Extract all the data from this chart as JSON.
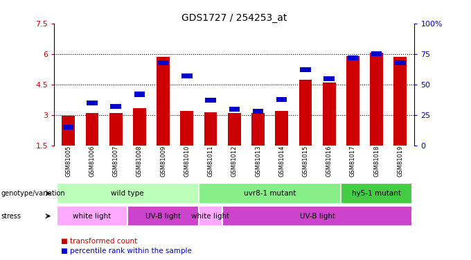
{
  "title": "GDS1727 / 254253_at",
  "samples": [
    "GSM81005",
    "GSM81006",
    "GSM81007",
    "GSM81008",
    "GSM81009",
    "GSM81010",
    "GSM81011",
    "GSM81012",
    "GSM81013",
    "GSM81014",
    "GSM81015",
    "GSM81016",
    "GSM81017",
    "GSM81018",
    "GSM81019"
  ],
  "red_values": [
    2.95,
    3.1,
    3.1,
    3.35,
    5.85,
    3.2,
    3.15,
    3.1,
    3.1,
    3.2,
    4.75,
    4.6,
    5.9,
    6.05,
    5.85
  ],
  "blue_values": [
    15,
    35,
    32,
    42,
    68,
    57,
    37,
    30,
    28,
    38,
    62,
    55,
    72,
    75,
    68
  ],
  "ylim_left": [
    1.5,
    7.5
  ],
  "ylim_right": [
    0,
    100
  ],
  "yticks_left": [
    1.5,
    3.0,
    4.5,
    6.0,
    7.5
  ],
  "yticks_right": [
    0,
    25,
    50,
    75,
    100
  ],
  "ytick_labels_left": [
    "1.5",
    "3",
    "4.5",
    "6",
    "7.5"
  ],
  "ytick_labels_right": [
    "0",
    "25",
    "50",
    "75",
    "100%"
  ],
  "hlines": [
    3.0,
    4.5,
    6.0
  ],
  "red_color": "#cc0000",
  "blue_color": "#0000cc",
  "genotype_row": [
    {
      "label": "wild type",
      "start": 0,
      "end": 6,
      "color": "#bbffbb"
    },
    {
      "label": "uvr8-1 mutant",
      "start": 6,
      "end": 12,
      "color": "#88ee88"
    },
    {
      "label": "hy5-1 mutant",
      "start": 12,
      "end": 15,
      "color": "#44cc44"
    }
  ],
  "stress_row": [
    {
      "label": "white light",
      "start": 0,
      "end": 3,
      "color": "#ffaaff"
    },
    {
      "label": "UV-B light",
      "start": 3,
      "end": 6,
      "color": "#cc44cc"
    },
    {
      "label": "white light",
      "start": 6,
      "end": 7,
      "color": "#ffaaff"
    },
    {
      "label": "UV-B light",
      "start": 7,
      "end": 15,
      "color": "#cc44cc"
    }
  ],
  "legend_red": "transformed count",
  "legend_blue": "percentile rank within the sample",
  "xlabel_genotype": "genotype/variation",
  "xlabel_stress": "stress",
  "background_color": "#ffffff"
}
